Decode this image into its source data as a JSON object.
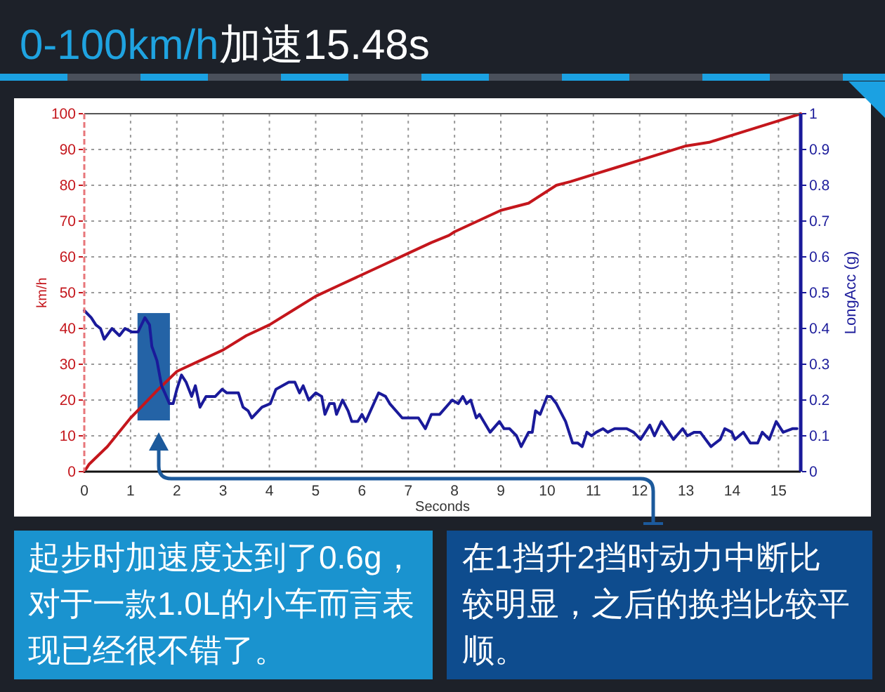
{
  "chart_data": {
    "type": "line",
    "title": "0-100km/h加速15.48s",
    "xlabel": "Seconds",
    "ylabel": "km/h",
    "y2label": "LongAcc (g)",
    "xlim": [
      0,
      15.48
    ],
    "xticks": [
      0,
      1,
      2,
      3,
      4,
      5,
      6,
      7,
      8,
      9,
      10,
      11,
      12,
      13,
      14,
      15
    ],
    "ylim": [
      0,
      100
    ],
    "yticks": [
      0,
      10,
      20,
      30,
      40,
      50,
      60,
      70,
      80,
      90,
      100
    ],
    "y2lim": [
      0,
      1
    ],
    "y2ticks": [
      0,
      0.1,
      0.2,
      0.3,
      0.4,
      0.5,
      0.6,
      0.7,
      0.8,
      0.9,
      1
    ],
    "grid": true,
    "series": [
      {
        "color": "#c4161c",
        "x": [
          0,
          0.1,
          0.5,
          1,
          1.3,
          1.6,
          2,
          2.5,
          3,
          3.5,
          4,
          4.5,
          5,
          5.5,
          6,
          6.5,
          7,
          7.5,
          7.88,
          8,
          8.5,
          9,
          9.6,
          10.2,
          10.5,
          11,
          11.5,
          12,
          12.5,
          13,
          13.5,
          14,
          14.5,
          15,
          15.48
        ],
        "values": [
          0,
          2,
          7,
          15,
          19,
          23,
          28,
          31,
          34,
          38,
          41,
          45,
          49,
          52,
          55,
          58,
          61,
          64,
          66,
          67,
          70,
          73,
          75,
          80,
          81,
          83,
          85,
          87,
          89,
          91,
          92,
          94,
          96,
          98,
          100
        ]
      },
      {
        "color": "#1a1a9a",
        "axis": "y2",
        "x": [
          0,
          0.15,
          0.25,
          0.35,
          0.43,
          0.6,
          0.76,
          0.88,
          1.03,
          1.16,
          1.31,
          1.41,
          1.46,
          1.57,
          1.67,
          1.74,
          1.84,
          1.92,
          2.0,
          2.1,
          2.2,
          2.32,
          2.4,
          2.5,
          2.63,
          2.83,
          2.98,
          3.08,
          3.33,
          3.43,
          3.54,
          3.62,
          3.84,
          4.02,
          4.14,
          4.42,
          4.55,
          4.65,
          4.73,
          4.85,
          5.0,
          5.13,
          5.2,
          5.3,
          5.4,
          5.45,
          5.58,
          5.7,
          5.78,
          5.91,
          6.0,
          6.08,
          6.36,
          6.51,
          6.6,
          6.87,
          7.02,
          7.22,
          7.37,
          7.5,
          7.68,
          7.95,
          8.08,
          8.18,
          8.26,
          8.35,
          8.47,
          8.54,
          8.77,
          8.97,
          9.07,
          9.19,
          9.34,
          9.44,
          9.6,
          9.68,
          9.75,
          9.85,
          10.0,
          10.08,
          10.2,
          10.4,
          10.55,
          10.66,
          10.76,
          10.86,
          10.96,
          11.06,
          11.21,
          11.31,
          11.46,
          11.72,
          11.87,
          12.02,
          12.22,
          12.32,
          12.47,
          12.73,
          12.93,
          13.03,
          13.18,
          13.31,
          13.54,
          13.74,
          13.84,
          13.99,
          14.06,
          14.24,
          14.39,
          14.55,
          14.65,
          14.8,
          14.95,
          15.1,
          15.3,
          15.4
        ],
        "values": [
          0.45,
          0.43,
          0.41,
          0.4,
          0.37,
          0.4,
          0.38,
          0.4,
          0.39,
          0.39,
          0.43,
          0.41,
          0.35,
          0.31,
          0.24,
          0.22,
          0.19,
          0.19,
          0.23,
          0.27,
          0.25,
          0.21,
          0.24,
          0.18,
          0.21,
          0.21,
          0.23,
          0.22,
          0.22,
          0.18,
          0.17,
          0.15,
          0.18,
          0.19,
          0.23,
          0.25,
          0.25,
          0.22,
          0.24,
          0.2,
          0.22,
          0.21,
          0.16,
          0.19,
          0.19,
          0.16,
          0.2,
          0.17,
          0.14,
          0.14,
          0.16,
          0.14,
          0.22,
          0.21,
          0.19,
          0.15,
          0.15,
          0.15,
          0.12,
          0.16,
          0.16,
          0.2,
          0.19,
          0.21,
          0.19,
          0.2,
          0.15,
          0.16,
          0.11,
          0.14,
          0.12,
          0.12,
          0.1,
          0.07,
          0.11,
          0.11,
          0.17,
          0.16,
          0.21,
          0.21,
          0.19,
          0.14,
          0.08,
          0.08,
          0.07,
          0.11,
          0.1,
          0.11,
          0.12,
          0.11,
          0.12,
          0.12,
          0.11,
          0.09,
          0.13,
          0.1,
          0.14,
          0.09,
          0.12,
          0.1,
          0.11,
          0.11,
          0.07,
          0.09,
          0.12,
          0.11,
          0.09,
          0.11,
          0.08,
          0.08,
          0.11,
          0.09,
          0.14,
          0.11,
          0.12,
          0.12
        ]
      }
    ],
    "bands": [
      {
        "axis": "x",
        "from": 1.15,
        "to": 1.85,
        "color": "#2463a6"
      }
    ],
    "annotations": [
      "起步时加速度达到了0.6g，对于一款1.0L的小车而言表现已经很不错了。",
      "在1挡升2挡时动力中断比较明显，之后的换挡比较平顺。"
    ]
  }
}
